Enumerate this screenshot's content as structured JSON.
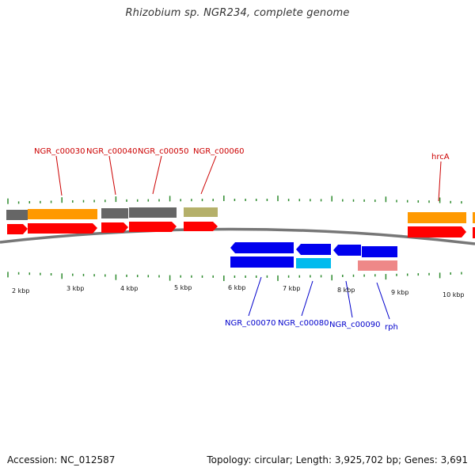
{
  "title": "Rhizobium sp. NGR234, complete genome",
  "footer": {
    "accession": "Accession: NC_012587",
    "stats": "Topology: circular; Length: 3,925,702 bp; Genes: 3,691"
  },
  "colors": {
    "forward_label": "#cc0000",
    "reverse_label": "#0000cc",
    "tick": "#2e8b2e",
    "backbone": "#777777",
    "cds": "#ff0000",
    "gene": "#ff9900",
    "pseudo": "#666666",
    "other": "#b5b06a",
    "reverse_cds": "#0000ee",
    "rrna": "#00bbee",
    "trna": "#ee8888"
  },
  "tick_labels": [
    "2 kbp",
    "3 kbp",
    "4 kbp",
    "5 kbp",
    "6 kbp",
    "7 kbp",
    "8 kbp",
    "9 kbp",
    "10 kbp"
  ],
  "forward_labels": [
    "NGR_c00030",
    "NGR_c00040",
    "NGR_c00050",
    "NGR_c00060",
    "hrcA"
  ],
  "reverse_labels": [
    "NGR_c00070",
    "NGR_c00080",
    "NGR_c00090",
    "rph"
  ]
}
